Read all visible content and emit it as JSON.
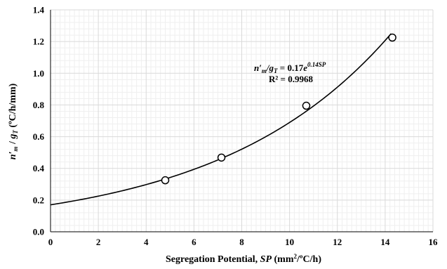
{
  "chart_data": {
    "type": "scatter",
    "xlim": [
      0,
      16
    ],
    "ylim": [
      0,
      1.4
    ],
    "x_ticks": [
      "0",
      "2",
      "4",
      "6",
      "8",
      "10",
      "12",
      "14",
      "16"
    ],
    "y_ticks": [
      "0.0",
      "0.2",
      "0.4",
      "0.6",
      "0.8",
      "1.0",
      "1.2",
      "1.4"
    ],
    "grid": true,
    "points": [
      {
        "x": 4.8,
        "y": 0.325
      },
      {
        "x": 7.15,
        "y": 0.468
      },
      {
        "x": 10.7,
        "y": 0.795
      },
      {
        "x": 14.3,
        "y": 1.225
      }
    ],
    "trendline": {
      "type": "exponential",
      "a": 0.17,
      "b": 0.14,
      "x_range": [
        0,
        14.25
      ],
      "equation_lhs": "n′",
      "equation_lhs_sub1": "m",
      "equation_lhs_mid": "/g",
      "equation_lhs_sub2": "T",
      "equation_rhs": " = 0.17",
      "equation_e": "e",
      "equation_exp": "0.14SP",
      "r_squared": "R² = 0.9968"
    },
    "xlabel": {
      "prefix": "Segregation Potential, ",
      "italic": "SP",
      "suffix1": " (mm",
      "sup": "2",
      "suffix2": "/ºC/h)"
    },
    "ylabel": {
      "n": "n′",
      "sub_m": "m",
      "slash": " / ",
      "g": "g",
      "sub_t": "T",
      "units": " (ºC/h/mm)"
    },
    "colors": {
      "axis": "#000000",
      "major_grid": "#d9d9d9",
      "minor_grid": "#efefef",
      "curve": "#000000",
      "marker_fill": "#ffffff",
      "marker_stroke": "#000000"
    }
  }
}
